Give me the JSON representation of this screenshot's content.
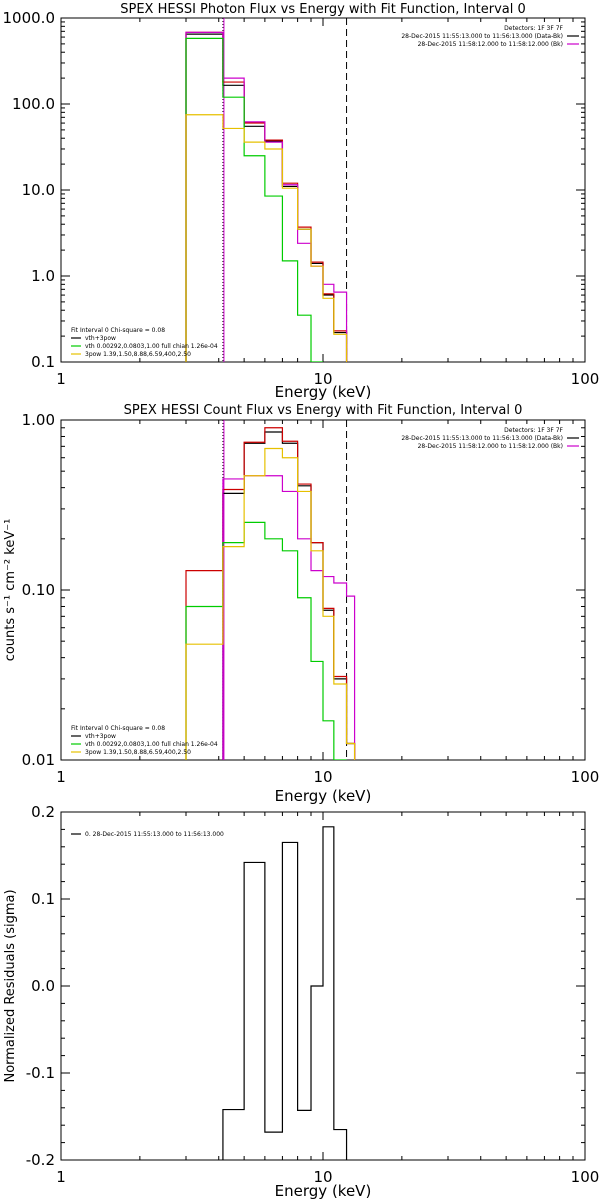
{
  "chart_data": [
    {
      "type": "line",
      "title": "SPEX HESSI Photon Flux vs Energy with Fit Function, Interval 0",
      "xlabel": "Energy  (keV)",
      "ylabel": "",
      "x_scale": "log",
      "y_scale": "log",
      "xlim": [
        1,
        100
      ],
      "ylim": [
        0.1,
        1000
      ],
      "x_ticks": [
        1,
        10,
        100
      ],
      "x_tick_labels": [
        "1",
        "10",
        "100"
      ],
      "y_ticks": [
        0.1,
        1,
        10,
        100,
        1000
      ],
      "y_tick_labels": [
        "0.1",
        "1.0",
        "10.0",
        "100.0",
        "1000.0"
      ],
      "vlines": [
        {
          "x": 4.15,
          "style": "dotted"
        },
        {
          "x": 4.15,
          "style": "solid",
          "color": "#cc00cc"
        },
        {
          "x": 12.3,
          "style": "dashed"
        }
      ],
      "legend_right": [
        {
          "text": "Detectors: 1F 3F 7F",
          "color": null
        },
        {
          "text": "28-Dec-2015 11:55:13.000 to 11:56:13.000 (Data-Bk)",
          "color": "#000000"
        },
        {
          "text": "28-Dec-2015 11:58:12.000 to 11:58:12.000 (Bk)",
          "color": "#cc00cc"
        }
      ],
      "legend_left": [
        {
          "text": "Fit Interval  0    Chi-square = 0.08",
          "color": null
        },
        {
          "text": "vth+3pow",
          "color": "#000000"
        },
        {
          "text": "vth 0.00292,0.0803,1.00   full chian 1.26e-04",
          "color": "#00cc00"
        },
        {
          "text": "3pow 1.39,1.50,8.88,6.59,400,2.50",
          "color": "#e6c000"
        }
      ],
      "bin_edges": [
        3.0,
        4.15,
        5.0,
        6.0,
        7.0,
        8.0,
        9.0,
        10.0,
        11.0,
        12.3
      ],
      "series": [
        {
          "color": "#000000",
          "values": [
            650,
            165,
            55,
            37,
            11,
            3.5,
            1.4,
            0.6,
            0.22
          ]
        },
        {
          "color": "#cc0000",
          "values": [
            680,
            180,
            60,
            38,
            12,
            3.7,
            1.45,
            0.62,
            0.23
          ]
        },
        {
          "color": "#cc00cc",
          "values": [
            680,
            200,
            62,
            36,
            11.5,
            2.4,
            1.3,
            0.8,
            0.65
          ]
        },
        {
          "color": "#00cc00",
          "values": [
            580,
            120,
            25,
            8.5,
            1.5,
            0.35,
            0.08,
            null,
            null
          ]
        },
        {
          "color": "#e6c000",
          "values": [
            75,
            52,
            36,
            30,
            10.5,
            3.5,
            1.3,
            0.55,
            0.21
          ]
        }
      ]
    },
    {
      "type": "line",
      "title": "SPEX HESSI Count Flux vs Energy with Fit Function, Interval 0",
      "xlabel": "Energy  (keV)",
      "ylabel": "counts s⁻¹ cm⁻² keV⁻¹",
      "x_scale": "log",
      "y_scale": "log",
      "xlim": [
        1,
        100
      ],
      "ylim": [
        0.01,
        1.0
      ],
      "x_ticks": [
        1,
        10,
        100
      ],
      "x_tick_labels": [
        "1",
        "10",
        "100"
      ],
      "y_ticks": [
        0.01,
        0.1,
        1.0
      ],
      "y_tick_labels": [
        "0.01",
        "0.10",
        "1.00"
      ],
      "vlines": [
        {
          "x": 4.15,
          "style": "dotted"
        },
        {
          "x": 4.15,
          "style": "solid",
          "color": "#cc00cc"
        },
        {
          "x": 12.3,
          "style": "dashed"
        }
      ],
      "legend_right": [
        {
          "text": "Detectors: 1F 3F 7F",
          "color": null
        },
        {
          "text": "28-Dec-2015 11:55:13.000 to 11:56:13.000 (Data-Bk)",
          "color": "#000000"
        },
        {
          "text": "28-Dec-2015 11:58:12.000 to 11:58:12.000 (Bk)",
          "color": "#cc00cc"
        }
      ],
      "legend_left": [
        {
          "text": "Fit Interval  0    Chi-square = 0.08",
          "color": null
        },
        {
          "text": "vth+3pow",
          "color": "#000000"
        },
        {
          "text": "vth 0.00292,0.0803,1.00   full chian 1.26e-04",
          "color": "#00cc00"
        },
        {
          "text": "3pow 1.39,1.50,8.88,6.59,400,2.50",
          "color": "#e6c000"
        }
      ],
      "bin_edges": [
        3.0,
        4.15,
        5.0,
        6.0,
        7.0,
        8.0,
        9.0,
        10.0,
        11.0,
        12.3,
        13.2
      ],
      "series": [
        {
          "color": "#000000",
          "values": [
            null,
            0.37,
            0.73,
            0.85,
            0.73,
            0.41,
            0.19,
            0.076,
            0.03,
            0.0125
          ]
        },
        {
          "color": "#cc0000",
          "values": [
            0.13,
            0.39,
            0.74,
            0.9,
            0.75,
            0.42,
            0.19,
            0.078,
            0.031,
            0.0125
          ]
        },
        {
          "color": "#cc00cc",
          "values": [
            null,
            0.45,
            0.47,
            0.47,
            0.38,
            0.2,
            0.13,
            0.12,
            0.11,
            0.092
          ]
        },
        {
          "color": "#00cc00",
          "values": [
            0.08,
            0.19,
            0.25,
            0.2,
            0.17,
            0.09,
            0.038,
            0.017,
            0.009,
            null
          ]
        },
        {
          "color": "#e6c000",
          "values": [
            0.048,
            0.18,
            0.47,
            0.68,
            0.6,
            0.38,
            0.17,
            0.07,
            0.028,
            0.0125
          ]
        }
      ]
    },
    {
      "type": "line",
      "title": "",
      "xlabel": "Energy  (keV)",
      "ylabel": "Normalized Residuals  (sigma)",
      "x_scale": "log",
      "y_scale": "linear",
      "xlim": [
        1,
        100
      ],
      "ylim": [
        -0.2,
        0.2
      ],
      "x_ticks": [
        1,
        10,
        100
      ],
      "x_tick_labels": [
        "1",
        "10",
        "100"
      ],
      "y_ticks": [
        -0.2,
        -0.1,
        0.0,
        0.1,
        0.2
      ],
      "y_tick_labels": [
        "-0.2",
        "-0.1",
        "0.0",
        "0.1",
        "0.2"
      ],
      "vlines": [],
      "legend_right": [],
      "legend_left": [
        {
          "text": "0. 28-Dec-2015 11:55:13.000 to 11:56:13.000",
          "color": "#000000"
        }
      ],
      "bin_edges": [
        4.15,
        5.0,
        6.0,
        7.0,
        8.0,
        9.0,
        10.0,
        11.0,
        12.3
      ],
      "series": [
        {
          "color": "#000000",
          "values": [
            -0.142,
            0.142,
            -0.168,
            0.165,
            -0.143,
            0.0,
            0.183,
            -0.165
          ]
        }
      ]
    }
  ]
}
